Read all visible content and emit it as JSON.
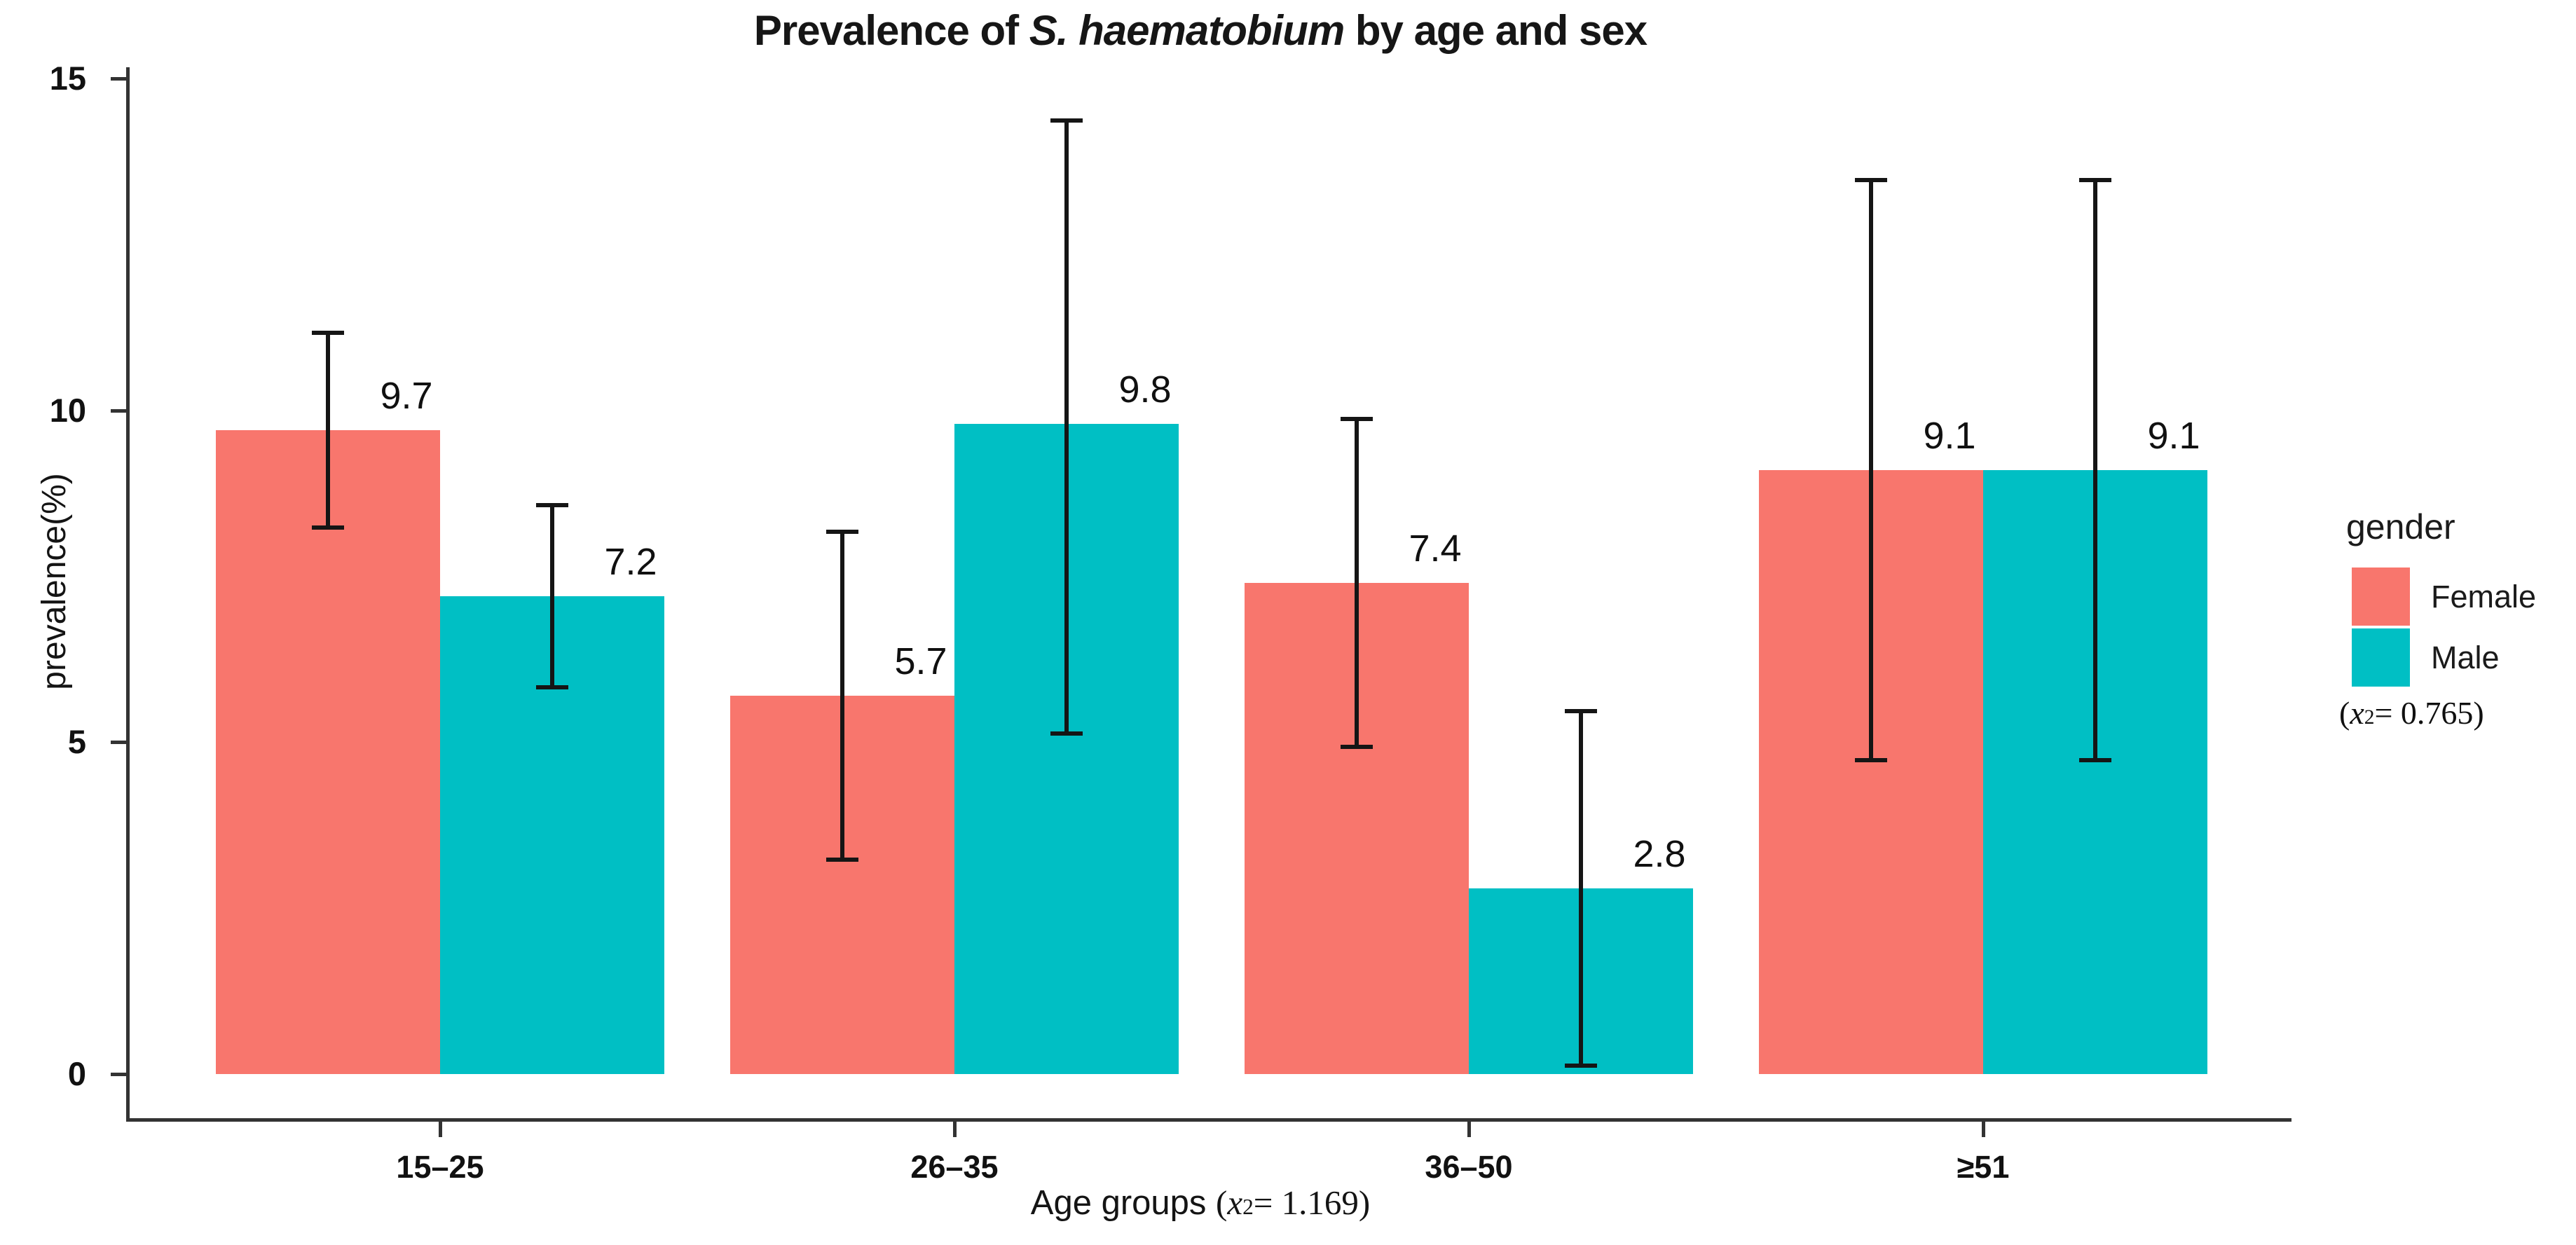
{
  "title": {
    "prefix": "Prevalence of ",
    "italic": "S. haematobium",
    "suffix": " by age and sex"
  },
  "axes": {
    "y_label": "prevalence(%)",
    "x_label": "Age groups",
    "x_chi_open": "(",
    "x_chi_var": "x",
    "x_chi_sup": "2",
    "x_chi_close": "= 1.169)"
  },
  "legend": {
    "title": "gender",
    "items": [
      {
        "label": "Female",
        "color": "#F8766D"
      },
      {
        "label": "Male",
        "color": "#00BFC4"
      }
    ],
    "note_open": "(",
    "note_var": "x",
    "note_sup": "2",
    "note_close": "= 0.765)"
  },
  "chart_data": {
    "type": "bar",
    "title": "Prevalence of S. haematobium by age and sex",
    "categories": [
      "15–25",
      "26–35",
      "36–50",
      "≥51"
    ],
    "series": [
      {
        "name": "Female",
        "color": "#F8766D",
        "values": [
          9.7,
          5.7,
          7.4,
          9.1
        ],
        "ci_low": [
          8.2,
          3.2,
          4.9,
          4.7
        ],
        "ci_high": [
          11.2,
          8.2,
          9.9,
          13.5
        ]
      },
      {
        "name": "Male",
        "color": "#00BFC4",
        "values": [
          7.2,
          9.8,
          2.8,
          9.1
        ],
        "ci_low": [
          5.8,
          5.1,
          0.1,
          4.7
        ],
        "ci_high": [
          8.6,
          14.4,
          5.5,
          13.5
        ]
      }
    ],
    "xlabel": "Age groups (x²= 1.169)",
    "ylabel": "prevalence(%)",
    "ylim": [
      0,
      15
    ],
    "yticks": [
      0,
      5,
      10,
      15
    ],
    "grid": false,
    "error_bars": true,
    "bar_value_labels": true,
    "legend_title": "gender",
    "legend_note": "(x²= 0.765)",
    "legend_position": "right"
  }
}
